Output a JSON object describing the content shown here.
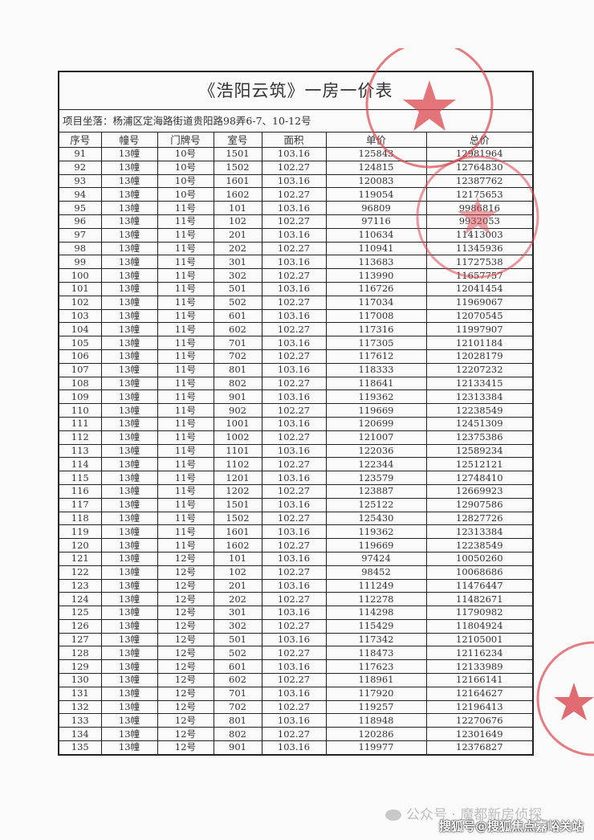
{
  "document": {
    "title": "《浩阳云筑》一房一价表",
    "project_location": "项目坐落：杨浦区定海路街道贵阳路98弄6-7、10-12号",
    "headers": [
      "序号",
      "幢号",
      "门牌号",
      "室号",
      "面积",
      "单价",
      "总价"
    ],
    "rows": [
      [
        "91",
        "13幢",
        "10号",
        "1501",
        "103.16",
        "125843",
        "12981964"
      ],
      [
        "92",
        "13幢",
        "10号",
        "1502",
        "102.27",
        "124815",
        "12764830"
      ],
      [
        "93",
        "13幢",
        "10号",
        "1601",
        "103.16",
        "120083",
        "12387762"
      ],
      [
        "94",
        "13幢",
        "10号",
        "1602",
        "102.27",
        "119054",
        "12175653"
      ],
      [
        "95",
        "13幢",
        "11号",
        "101",
        "103.16",
        "96809",
        "9986816"
      ],
      [
        "96",
        "13幢",
        "11号",
        "102",
        "102.27",
        "97116",
        "9932053"
      ],
      [
        "97",
        "13幢",
        "11号",
        "201",
        "103.16",
        "110634",
        "11413003"
      ],
      [
        "98",
        "13幢",
        "11号",
        "202",
        "102.27",
        "110941",
        "11345936"
      ],
      [
        "99",
        "13幢",
        "11号",
        "301",
        "103.16",
        "113683",
        "11727538"
      ],
      [
        "100",
        "13幢",
        "11号",
        "302",
        "102.27",
        "113990",
        "11657757"
      ],
      [
        "101",
        "13幢",
        "11号",
        "501",
        "103.16",
        "116726",
        "12041454"
      ],
      [
        "102",
        "13幢",
        "11号",
        "502",
        "102.27",
        "117034",
        "11969067"
      ],
      [
        "103",
        "13幢",
        "11号",
        "601",
        "103.16",
        "117008",
        "12070545"
      ],
      [
        "104",
        "13幢",
        "11号",
        "602",
        "102.27",
        "117316",
        "11997907"
      ],
      [
        "105",
        "13幢",
        "11号",
        "701",
        "103.16",
        "117305",
        "12101184"
      ],
      [
        "106",
        "13幢",
        "11号",
        "702",
        "102.27",
        "117612",
        "12028179"
      ],
      [
        "107",
        "13幢",
        "11号",
        "801",
        "103.16",
        "118333",
        "12207232"
      ],
      [
        "108",
        "13幢",
        "11号",
        "802",
        "102.27",
        "118641",
        "12133415"
      ],
      [
        "109",
        "13幢",
        "11号",
        "901",
        "103.16",
        "119362",
        "12313384"
      ],
      [
        "110",
        "13幢",
        "11号",
        "902",
        "102.27",
        "119669",
        "12238549"
      ],
      [
        "111",
        "13幢",
        "11号",
        "1001",
        "103.16",
        "120699",
        "12451309"
      ],
      [
        "112",
        "13幢",
        "11号",
        "1002",
        "102.27",
        "121007",
        "12375386"
      ],
      [
        "113",
        "13幢",
        "11号",
        "1101",
        "103.16",
        "122036",
        "12589234"
      ],
      [
        "114",
        "13幢",
        "11号",
        "1102",
        "102.27",
        "122344",
        "12512121"
      ],
      [
        "115",
        "13幢",
        "11号",
        "1201",
        "103.16",
        "123579",
        "12748410"
      ],
      [
        "116",
        "13幢",
        "11号",
        "1202",
        "102.27",
        "123887",
        "12669923"
      ],
      [
        "117",
        "13幢",
        "11号",
        "1501",
        "103.16",
        "125122",
        "12907586"
      ],
      [
        "118",
        "13幢",
        "11号",
        "1502",
        "102.27",
        "125430",
        "12827726"
      ],
      [
        "119",
        "13幢",
        "11号",
        "1601",
        "103.16",
        "119362",
        "12313384"
      ],
      [
        "120",
        "13幢",
        "11号",
        "1602",
        "102.27",
        "119669",
        "12238549"
      ],
      [
        "121",
        "13幢",
        "12号",
        "101",
        "103.16",
        "97424",
        "10050260"
      ],
      [
        "122",
        "13幢",
        "12号",
        "102",
        "102.27",
        "98452",
        "10068686"
      ],
      [
        "123",
        "13幢",
        "12号",
        "201",
        "103.16",
        "111249",
        "11476447"
      ],
      [
        "124",
        "13幢",
        "12号",
        "202",
        "102.27",
        "112278",
        "11482671"
      ],
      [
        "125",
        "13幢",
        "12号",
        "301",
        "103.16",
        "114298",
        "11790982"
      ],
      [
        "126",
        "13幢",
        "12号",
        "302",
        "102.27",
        "115429",
        "11804924"
      ],
      [
        "127",
        "13幢",
        "12号",
        "501",
        "103.16",
        "117342",
        "12105001"
      ],
      [
        "128",
        "13幢",
        "12号",
        "502",
        "102.27",
        "118473",
        "12116234"
      ],
      [
        "129",
        "13幢",
        "12号",
        "601",
        "103.16",
        "117623",
        "12133989"
      ],
      [
        "130",
        "13幢",
        "12号",
        "602",
        "102.27",
        "118961",
        "12166141"
      ],
      [
        "131",
        "13幢",
        "12号",
        "701",
        "103.16",
        "117920",
        "12164627"
      ],
      [
        "132",
        "13幢",
        "12号",
        "702",
        "102.27",
        "119257",
        "12196413"
      ],
      [
        "133",
        "13幢",
        "12号",
        "801",
        "103.16",
        "118948",
        "12270676"
      ],
      [
        "134",
        "13幢",
        "12号",
        "802",
        "102.27",
        "120286",
        "12301649"
      ],
      [
        "135",
        "13幢",
        "12号",
        "901",
        "103.16",
        "119977",
        "12376827"
      ]
    ]
  },
  "stamps": {
    "color": "#d9474f",
    "icon": "star-seal"
  },
  "watermark": {
    "line1": "公众号 · 魔都新房侦探",
    "line2": "搜狐号@搜狐焦点嘉峪关站"
  }
}
